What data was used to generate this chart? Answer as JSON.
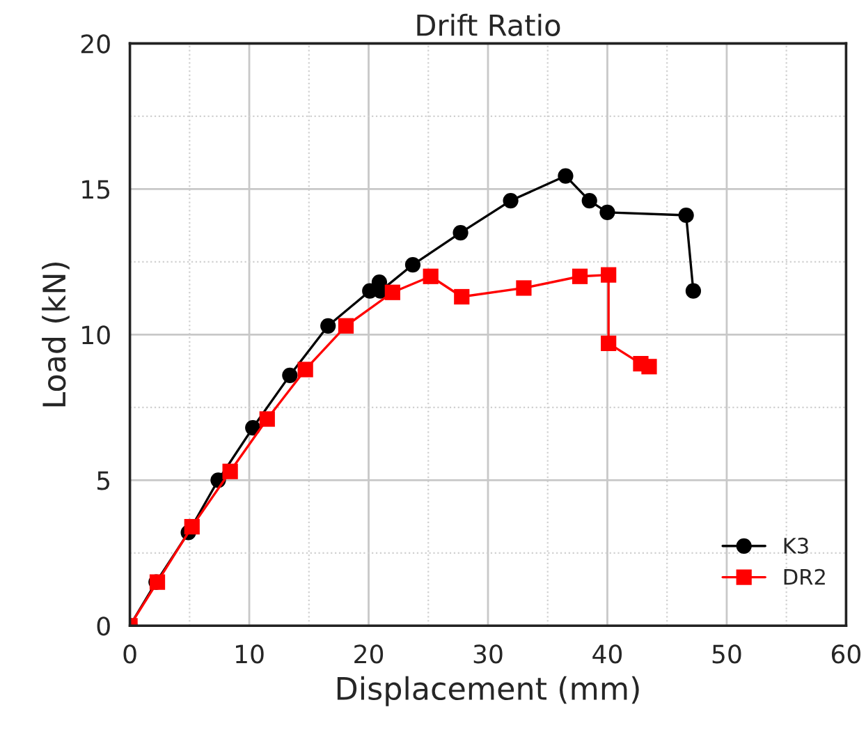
{
  "chart_data": {
    "type": "line",
    "title": "Drift Ratio",
    "xlabel": "Displacement (mm)",
    "ylabel": "Load (kN)",
    "xlim": [
      0,
      60
    ],
    "xticks": [
      0,
      10,
      20,
      30,
      40,
      50,
      60
    ],
    "ylim": [
      0,
      20
    ],
    "yticks": [
      0,
      5,
      10,
      15,
      20
    ],
    "grid": true,
    "legend": "bottom right",
    "series": [
      {
        "name": "K3",
        "color": "#000000",
        "marker": "circle",
        "x": [
          0,
          2.2,
          4.9,
          7.4,
          10.3,
          13.4,
          16.6,
          20.1,
          20.9,
          21.0,
          23.7,
          27.7,
          31.9,
          36.5,
          38.5,
          40.0,
          46.6,
          47.2
        ],
        "values": [
          0,
          1.5,
          3.2,
          5.0,
          6.8,
          8.6,
          10.3,
          11.5,
          11.8,
          11.5,
          12.4,
          13.5,
          14.6,
          15.45,
          14.6,
          14.2,
          14.1,
          11.5
        ]
      },
      {
        "name": "DR2",
        "color": "#ff0000",
        "marker": "square",
        "x": [
          0,
          2.3,
          5.2,
          8.4,
          11.5,
          14.7,
          18.1,
          22.0,
          25.2,
          27.8,
          33.0,
          37.7,
          40.1,
          40.1,
          42.8,
          43.5
        ],
        "values": [
          0,
          1.5,
          3.4,
          5.3,
          7.1,
          8.8,
          10.3,
          11.45,
          12.0,
          11.3,
          11.6,
          12.0,
          12.05,
          9.7,
          9.0,
          8.9
        ]
      }
    ]
  }
}
